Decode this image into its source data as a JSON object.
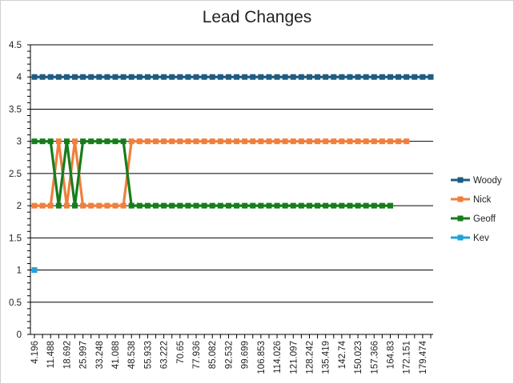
{
  "chart_data": {
    "type": "line",
    "title": "Lead Changes",
    "xlabel": "",
    "ylabel": "",
    "ylim": [
      0,
      4.5
    ],
    "yticks": [
      0,
      0.5,
      1,
      1.5,
      2,
      2.5,
      3,
      3.5,
      4,
      4.5
    ],
    "ytick_labels": [
      "0",
      "0.5",
      "1",
      "1.5",
      "2",
      "2.5",
      "3",
      "3.5",
      "4",
      "4.5"
    ],
    "x_labels": [
      "4.196",
      "11.488",
      "18.692",
      "25.997",
      "33.248",
      "41.088",
      "48.538",
      "55.933",
      "63.222",
      "70.65",
      "77.936",
      "85.082",
      "92.532",
      "99.699",
      "106.853",
      "114.026",
      "121.097",
      "128.242",
      "135.419",
      "142.74",
      "150.023",
      "157.366",
      "164.83",
      "172.151",
      "179.474"
    ],
    "n_points": 50,
    "grid": true,
    "legend_position": "right",
    "series": [
      {
        "name": "Woody",
        "color": "#1f5c82",
        "values": [
          4,
          4,
          4,
          4,
          4,
          4,
          4,
          4,
          4,
          4,
          4,
          4,
          4,
          4,
          4,
          4,
          4,
          4,
          4,
          4,
          4,
          4,
          4,
          4,
          4,
          4,
          4,
          4,
          4,
          4,
          4,
          4,
          4,
          4,
          4,
          4,
          4,
          4,
          4,
          4,
          4,
          4,
          4,
          4,
          4,
          4,
          4,
          4,
          4,
          4
        ]
      },
      {
        "name": "Nick",
        "color": "#f07f3c",
        "values": [
          2,
          2,
          2,
          3,
          2,
          3,
          2,
          2,
          2,
          2,
          2,
          2,
          3,
          3,
          3,
          3,
          3,
          3,
          3,
          3,
          3,
          3,
          3,
          3,
          3,
          3,
          3,
          3,
          3,
          3,
          3,
          3,
          3,
          3,
          3,
          3,
          3,
          3,
          3,
          3,
          3,
          3,
          3,
          3,
          3,
          3,
          3
        ]
      },
      {
        "name": "Geoff",
        "color": "#177d1b",
        "values": [
          3,
          3,
          3,
          2,
          3,
          2,
          3,
          3,
          3,
          3,
          3,
          3,
          2,
          2,
          2,
          2,
          2,
          2,
          2,
          2,
          2,
          2,
          2,
          2,
          2,
          2,
          2,
          2,
          2,
          2,
          2,
          2,
          2,
          2,
          2,
          2,
          2,
          2,
          2,
          2,
          2,
          2,
          2,
          2,
          2
        ]
      },
      {
        "name": "Kev",
        "color": "#1fa3d6",
        "values": [
          1
        ]
      }
    ]
  }
}
